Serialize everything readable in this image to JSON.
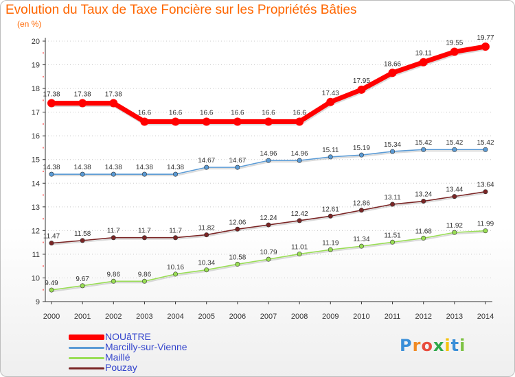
{
  "title": "Evolution du Taux de Taxe Foncière sur les Propriétés Bâties",
  "unit_label": "(en %)",
  "logo_text": "Proxiti",
  "chart_data": {
    "type": "line",
    "title": "Evolution du Taux de Taxe Foncière sur les Propriétés Bâties",
    "ylabel": "(en %)",
    "xlabel": "",
    "ylim": [
      9,
      20
    ],
    "yticks": [
      9,
      10,
      11,
      12,
      13,
      14,
      15,
      16,
      17,
      18,
      19,
      20
    ],
    "x": [
      "2000",
      "2001",
      "2002",
      "2003",
      "2004",
      "2005",
      "2006",
      "2007",
      "2008",
      "2009",
      "2010",
      "2011",
      "2012",
      "2013",
      "2014"
    ],
    "legend_position": "bottom-left",
    "grid": "horizontal-dotted",
    "series": [
      {
        "name": "NOUâTRE",
        "color": "#ff0000",
        "values": [
          17.38,
          17.38,
          17.38,
          16.6,
          16.6,
          16.6,
          16.6,
          16.6,
          16.6,
          17.43,
          17.95,
          18.66,
          19.11,
          19.55,
          19.77
        ],
        "labels": [
          "17.38",
          "17.38",
          "17.38",
          "16.6",
          "16.6",
          "16.6",
          "16.6",
          "16.6",
          "16.6",
          "17.43",
          "17.95",
          "18.66",
          "19.11",
          "19.55",
          "19.77"
        ]
      },
      {
        "name": "Marcilly-sur-Vienne",
        "color": "#5b9bd5",
        "values": [
          14.38,
          14.38,
          14.38,
          14.38,
          14.38,
          14.67,
          14.67,
          14.96,
          14.96,
          15.11,
          15.19,
          15.34,
          15.42,
          15.42,
          15.42
        ],
        "labels": [
          "14.38",
          "14.38",
          "14.38",
          "14.38",
          "14.38",
          "14.67",
          "14.67",
          "14.96",
          "14.96",
          "15.11",
          "15.19",
          "15.34",
          "15.42",
          "15.42",
          "15.42"
        ]
      },
      {
        "name": "Maillé",
        "color": "#99dd55",
        "values": [
          9.49,
          9.67,
          9.86,
          9.86,
          10.16,
          10.34,
          10.58,
          10.79,
          11.01,
          11.19,
          11.34,
          11.51,
          11.68,
          11.92,
          11.99
        ],
        "labels": [
          "9.49",
          "9.67",
          "9.86",
          "9.86",
          "10.16",
          "10.34",
          "10.58",
          "10.79",
          "11.01",
          "11.19",
          "11.34",
          "11.51",
          "11.68",
          "11.92",
          "11.99"
        ]
      },
      {
        "name": "Pouzay",
        "color": "#7a2525",
        "values": [
          11.47,
          11.58,
          11.7,
          11.7,
          11.7,
          11.82,
          12.06,
          12.24,
          12.42,
          12.61,
          12.86,
          13.11,
          13.24,
          13.44,
          13.64
        ],
        "labels": [
          "11.47",
          "11.58",
          "11.7",
          "11.7",
          "11.7",
          "11.82",
          "12.06",
          "12.24",
          "12.42",
          "12.61",
          "12.86",
          "13.11",
          "13.24",
          "13.44",
          "13.64"
        ]
      }
    ]
  }
}
